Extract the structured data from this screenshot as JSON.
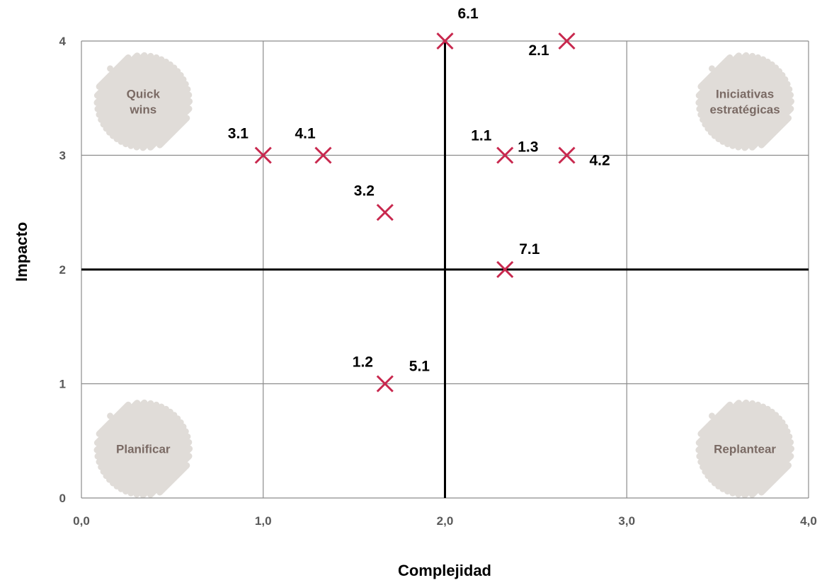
{
  "chart_data": {
    "type": "scatter",
    "title": "",
    "xlabel": "Complejidad",
    "ylabel": "Impacto",
    "xlim": [
      0,
      4
    ],
    "ylim": [
      0,
      4
    ],
    "x_ticks": [
      {
        "value": 0,
        "label": "0,0"
      },
      {
        "value": 1,
        "label": "1,0"
      },
      {
        "value": 2,
        "label": "2,0"
      },
      {
        "value": 3,
        "label": "3,0"
      },
      {
        "value": 4,
        "label": "4,0"
      }
    ],
    "y_ticks": [
      {
        "value": 0,
        "label": "0"
      },
      {
        "value": 1,
        "label": "1"
      },
      {
        "value": 2,
        "label": "2"
      },
      {
        "value": 3,
        "label": "3"
      },
      {
        "value": 4,
        "label": "4"
      }
    ],
    "grid": true,
    "dividers": {
      "x": 2,
      "y": 2
    },
    "marker": "x",
    "marker_color": "#c8284e",
    "points": [
      {
        "label": "6.1",
        "x": 2.0,
        "y": 4.0
      },
      {
        "label": "2.1",
        "x": 2.67,
        "y": 4.0
      },
      {
        "label": "3.1",
        "x": 1.0,
        "y": 3.0
      },
      {
        "label": "4.1",
        "x": 1.33,
        "y": 3.0
      },
      {
        "label": "1.1",
        "x": 2.33,
        "y": 3.0
      },
      {
        "label": "1.3",
        "x": 2.33,
        "y": 3.0
      },
      {
        "label": "4.2",
        "x": 2.67,
        "y": 3.0
      },
      {
        "label": "3.2",
        "x": 1.67,
        "y": 2.5
      },
      {
        "label": "7.1",
        "x": 2.33,
        "y": 2.0
      },
      {
        "label": "1.2",
        "x": 1.67,
        "y": 1.0
      },
      {
        "label": "5.1",
        "x": 1.67,
        "y": 1.0
      }
    ],
    "quadrants": [
      {
        "name": "quick-wins",
        "lines": [
          "Quick",
          "wins"
        ],
        "position": "top-left"
      },
      {
        "name": "iniciativas-estrategicas",
        "lines": [
          "Iniciativas",
          "estratégicas"
        ],
        "position": "top-right"
      },
      {
        "name": "planificar",
        "lines": [
          "Planificar"
        ],
        "position": "bottom-left"
      },
      {
        "name": "replantear",
        "lines": [
          "Replantear"
        ],
        "position": "bottom-right"
      }
    ],
    "colors": {
      "grid": "#8c8c8c",
      "divider": "#000000",
      "quadrant_blob": "#e0dcd8",
      "quadrant_text": "#7a6a64"
    }
  }
}
